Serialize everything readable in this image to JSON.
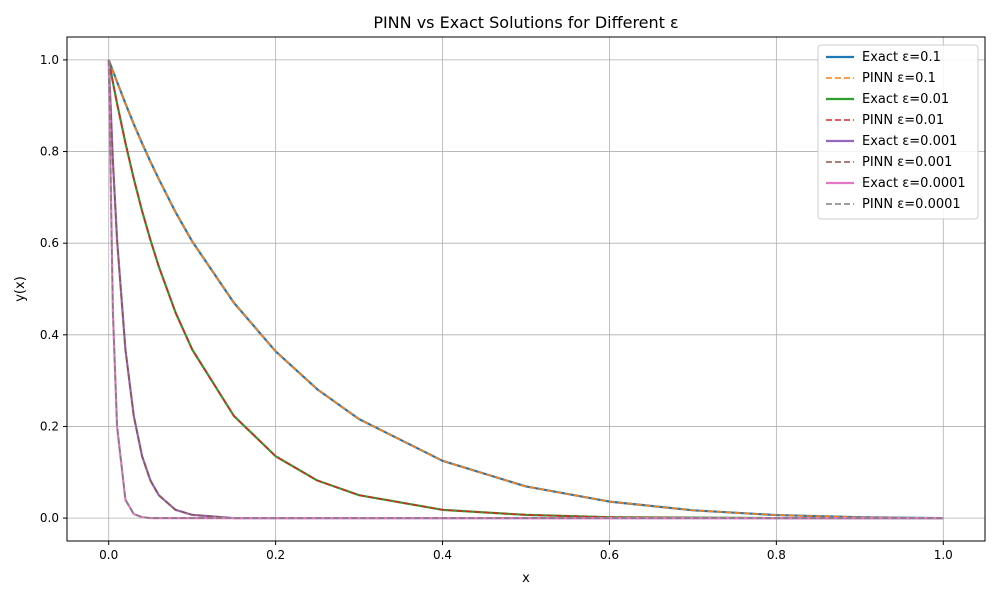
{
  "chart_data": {
    "type": "line",
    "title": "PINN vs Exact Solutions for Different ε",
    "xlabel": "x",
    "ylabel": "y(x)",
    "xlim": [
      -0.05,
      1.05
    ],
    "ylim": [
      -0.05,
      1.05
    ],
    "xticks": [
      0.0,
      0.2,
      0.4,
      0.6,
      0.8,
      1.0
    ],
    "yticks": [
      0.0,
      0.2,
      0.4,
      0.6,
      0.8,
      1.0
    ],
    "xtick_labels": [
      "0.0",
      "0.2",
      "0.4",
      "0.6",
      "0.8",
      "1.0"
    ],
    "ytick_labels": [
      "0.0",
      "0.2",
      "0.4",
      "0.6",
      "0.8",
      "1.0"
    ],
    "grid": true,
    "legend_position": "top-right",
    "x": [
      0.0,
      0.005,
      0.01,
      0.02,
      0.03,
      0.04,
      0.05,
      0.06,
      0.08,
      0.1,
      0.15,
      0.2,
      0.25,
      0.3,
      0.4,
      0.5,
      0.6,
      0.7,
      0.8,
      0.9,
      1.0
    ],
    "series": [
      {
        "name": "Exact ε=0.1",
        "style": "solid",
        "color": "#1f77b4",
        "values": [
          1.0,
          0.976,
          0.952,
          0.905,
          0.86,
          0.818,
          0.778,
          0.74,
          0.668,
          0.604,
          0.47,
          0.364,
          0.281,
          0.216,
          0.125,
          0.069,
          0.036,
          0.017,
          0.0066,
          0.0018,
          0.0
        ]
      },
      {
        "name": "PINN ε=0.1",
        "style": "dashed",
        "color": "#ff7f0e",
        "values": [
          1.0,
          0.976,
          0.952,
          0.905,
          0.86,
          0.818,
          0.778,
          0.74,
          0.668,
          0.604,
          0.47,
          0.364,
          0.281,
          0.216,
          0.125,
          0.069,
          0.036,
          0.017,
          0.0066,
          0.0018,
          0.0
        ]
      },
      {
        "name": "Exact ε=0.01",
        "style": "solid",
        "color": "#2ca02c",
        "values": [
          1.0,
          0.951,
          0.905,
          0.819,
          0.741,
          0.67,
          0.607,
          0.549,
          0.449,
          0.368,
          0.223,
          0.135,
          0.082,
          0.05,
          0.018,
          0.007,
          0.002,
          0.001,
          0.0,
          0.0,
          0.0
        ]
      },
      {
        "name": "PINN ε=0.01",
        "style": "dashed",
        "color": "#d62728",
        "values": [
          1.0,
          0.951,
          0.905,
          0.819,
          0.741,
          0.67,
          0.607,
          0.549,
          0.449,
          0.368,
          0.223,
          0.135,
          0.082,
          0.05,
          0.018,
          0.007,
          0.002,
          0.001,
          0.0,
          0.0,
          0.0
        ]
      },
      {
        "name": "Exact ε=0.001",
        "style": "solid",
        "color": "#9467bd",
        "values": [
          1.0,
          0.779,
          0.607,
          0.368,
          0.223,
          0.135,
          0.082,
          0.05,
          0.018,
          0.007,
          0.0,
          0.0,
          0.0,
          0.0,
          0.0,
          0.0,
          0.0,
          0.0,
          0.0,
          0.0,
          0.0
        ]
      },
      {
        "name": "PINN ε=0.001",
        "style": "dashed",
        "color": "#8c564b",
        "values": [
          1.0,
          0.779,
          0.607,
          0.368,
          0.223,
          0.135,
          0.082,
          0.05,
          0.018,
          0.007,
          0.0,
          0.0,
          0.0,
          0.0,
          0.0,
          0.0,
          0.0,
          0.0,
          0.0,
          0.0,
          0.0
        ]
      },
      {
        "name": "Exact ε=0.0001",
        "style": "solid",
        "color": "#e377c2",
        "values": [
          1.0,
          0.45,
          0.2,
          0.04,
          0.009,
          0.002,
          0.0,
          0.0,
          0.0,
          0.0,
          0.0,
          0.0,
          0.0,
          0.0,
          0.0,
          0.0,
          0.0,
          0.0,
          0.0,
          0.0,
          0.0
        ]
      },
      {
        "name": "PINN ε=0.0001",
        "style": "dashed",
        "color": "#7f7f7f",
        "values": [
          1.0,
          0.45,
          0.2,
          0.04,
          0.009,
          0.002,
          0.0,
          0.0,
          0.0,
          0.0,
          0.0,
          0.0,
          0.0,
          0.0,
          0.0,
          0.0,
          0.0,
          0.0,
          0.0,
          0.0,
          0.0
        ]
      }
    ]
  }
}
